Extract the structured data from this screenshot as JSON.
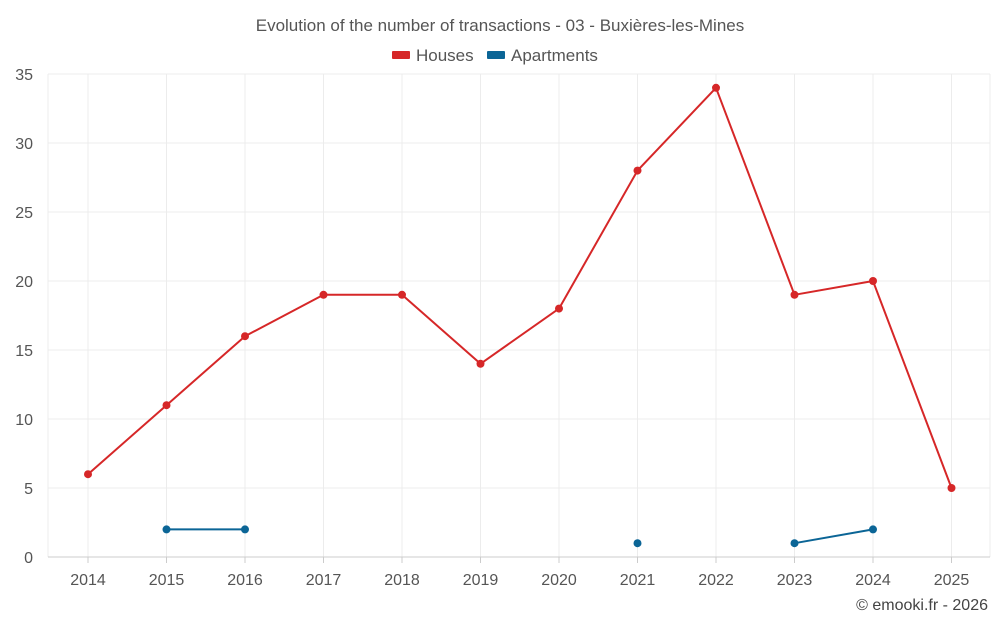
{
  "chart_data": {
    "type": "line",
    "title": "Evolution of the number of transactions - 03 - Buxières-les-Mines",
    "categories": [
      "2014",
      "2015",
      "2016",
      "2017",
      "2018",
      "2019",
      "2020",
      "2021",
      "2022",
      "2023",
      "2024",
      "2025"
    ],
    "ylim": [
      0,
      35
    ],
    "yticks": [
      "0",
      "5",
      "10",
      "15",
      "20",
      "25",
      "30",
      "35"
    ],
    "xlabel": "",
    "ylabel": "",
    "grid": true,
    "legend_position": "top-center",
    "series": [
      {
        "name": "Houses",
        "color": "#d62728",
        "values": [
          6,
          11,
          16,
          19,
          19,
          14,
          18,
          28,
          34,
          19,
          20,
          5
        ]
      },
      {
        "name": "Apartments",
        "color": "#0b6596",
        "values": [
          null,
          2,
          2,
          null,
          null,
          null,
          null,
          1,
          null,
          1,
          2,
          null
        ]
      }
    ]
  },
  "credit": "© emooki.fr - 2026"
}
